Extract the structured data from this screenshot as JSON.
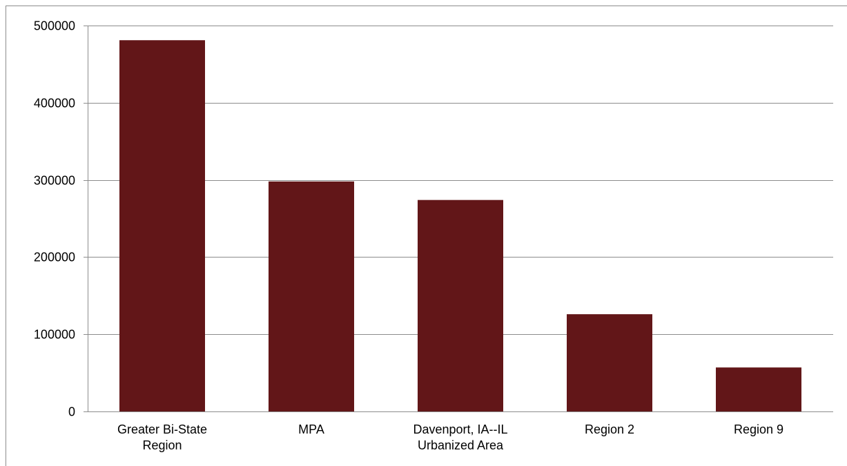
{
  "chart_data": {
    "type": "bar",
    "categories": [
      [
        "Greater Bi-State",
        "Region"
      ],
      [
        "MPA"
      ],
      [
        "Davenport, IA--IL",
        "Urbanized Area"
      ],
      [
        "Region 2"
      ],
      [
        "Region 9"
      ]
    ],
    "values": [
      481000,
      298000,
      274000,
      126000,
      57000
    ],
    "ylim": [
      0,
      500000
    ],
    "yticks": [
      0,
      100000,
      200000,
      300000,
      400000,
      500000
    ],
    "ytick_labels": [
      "0",
      "100000",
      "200000",
      "300000",
      "400000",
      "500000"
    ],
    "grid": true,
    "legend": "none",
    "colors": {
      "bar": "#621618",
      "grid": "#8c8c8c",
      "axis": "#8c8c8c"
    }
  }
}
